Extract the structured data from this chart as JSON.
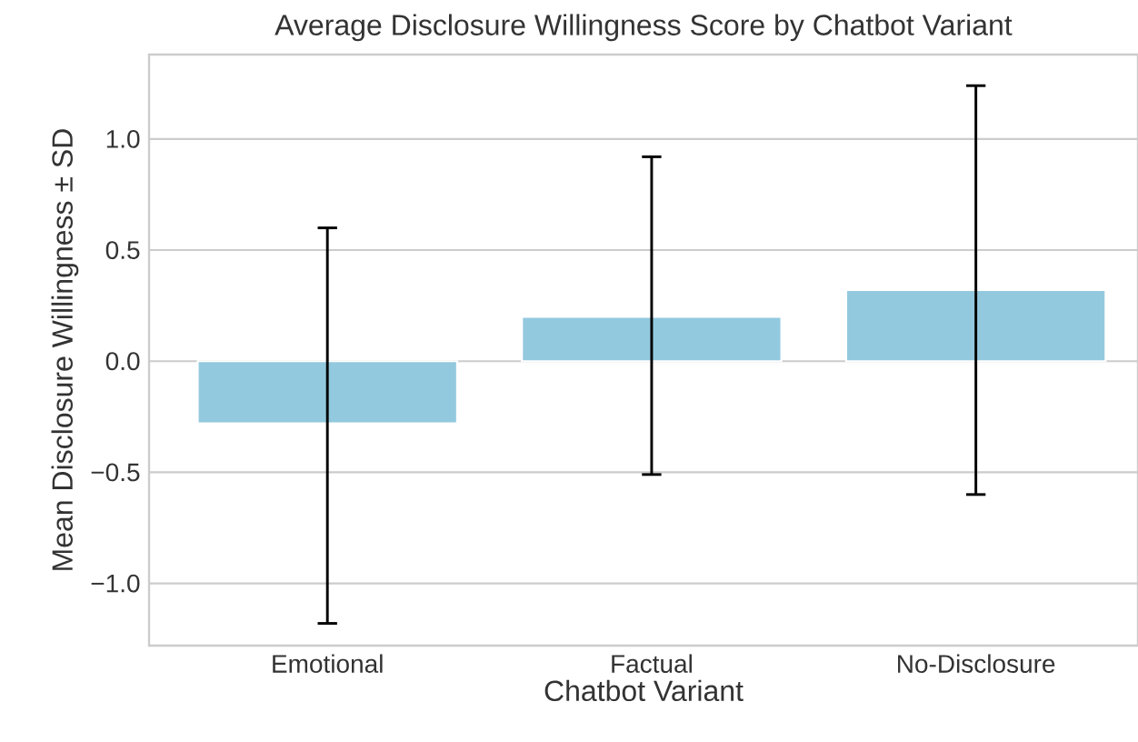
{
  "chart_data": {
    "type": "bar",
    "title": "Average Disclosure Willingness Score by Chatbot Variant",
    "xlabel": "Chatbot Variant",
    "ylabel": "Mean Disclosure Willingness ± SD",
    "categories": [
      "Emotional",
      "Factual",
      "No-Disclosure"
    ],
    "values": [
      -0.28,
      0.2,
      0.32
    ],
    "color": "#93c9de",
    "errors": [
      [
        -1.18,
        0.6
      ],
      [
        -0.51,
        0.92
      ],
      [
        -0.6,
        1.24
      ]
    ],
    "ylim": [
      -1.28,
      1.38
    ],
    "yticks": [
      {
        "value": -1.0,
        "label": "−1.0"
      },
      {
        "value": -0.5,
        "label": "−0.5"
      },
      {
        "value": 0.0,
        "label": "0.0"
      },
      {
        "value": 0.5,
        "label": "0.5"
      },
      {
        "value": 1.0,
        "label": "1.0"
      }
    ],
    "grid": "y"
  }
}
